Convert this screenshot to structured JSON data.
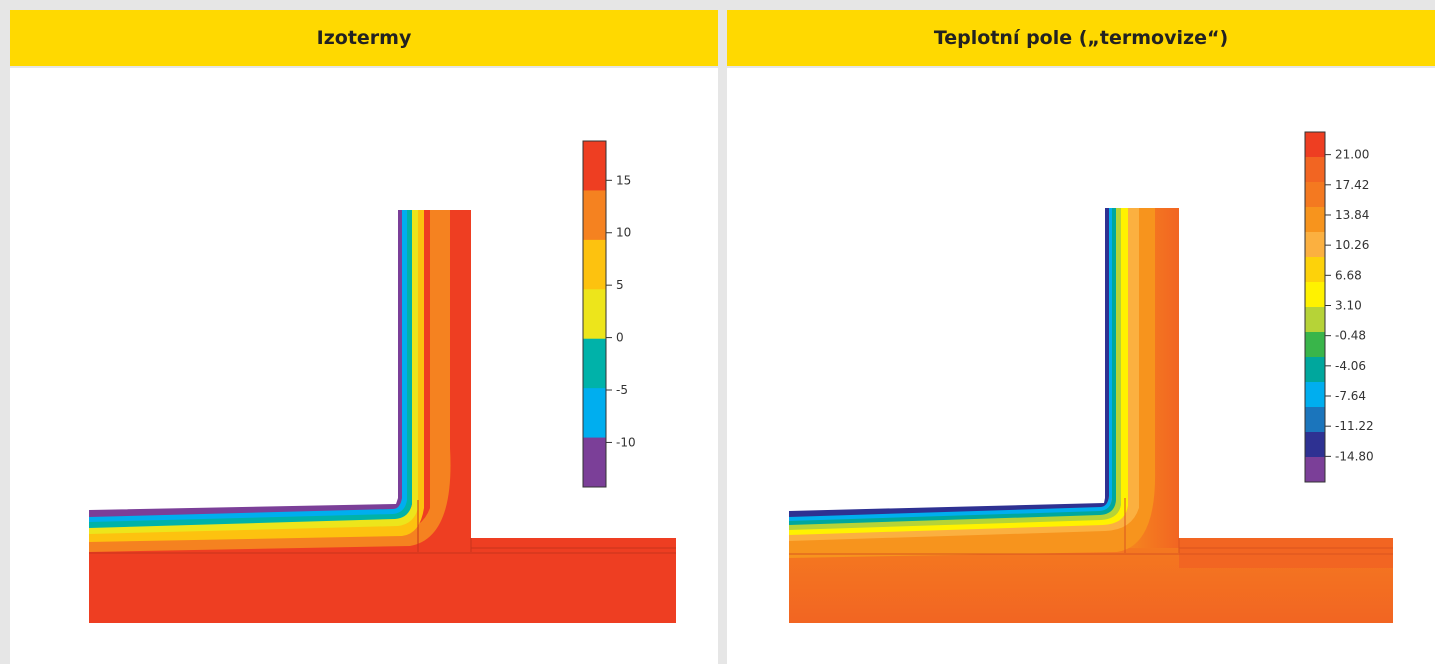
{
  "panels": {
    "left": {
      "title": "Izotermy"
    },
    "right": {
      "title": "Teplotní pole („termovize“)"
    }
  },
  "legend_left": {
    "labels": [
      "15",
      "10",
      "5",
      "0",
      "-5",
      "-10"
    ],
    "colors": [
      "#ee3e22",
      "#f58220",
      "#fdc20f",
      "#ede51b",
      "#00b2a9",
      "#00aeef",
      "#7b3f98"
    ]
  },
  "legend_right": {
    "labels": [
      "21.00",
      "17.42",
      "13.84",
      "10.26",
      "6.68",
      "3.10",
      "-0.48",
      "-4.06",
      "-7.64",
      "-11.22",
      "-14.80"
    ],
    "colors": [
      "#ee3e22",
      "#f26522",
      "#f47920",
      "#f7941d",
      "#fbb040",
      "#fdd20a",
      "#fff200",
      "#b6d337",
      "#39b54a",
      "#00a79d",
      "#00aeef",
      "#1b75bc",
      "#2e3192",
      "#7b3f98"
    ]
  }
}
